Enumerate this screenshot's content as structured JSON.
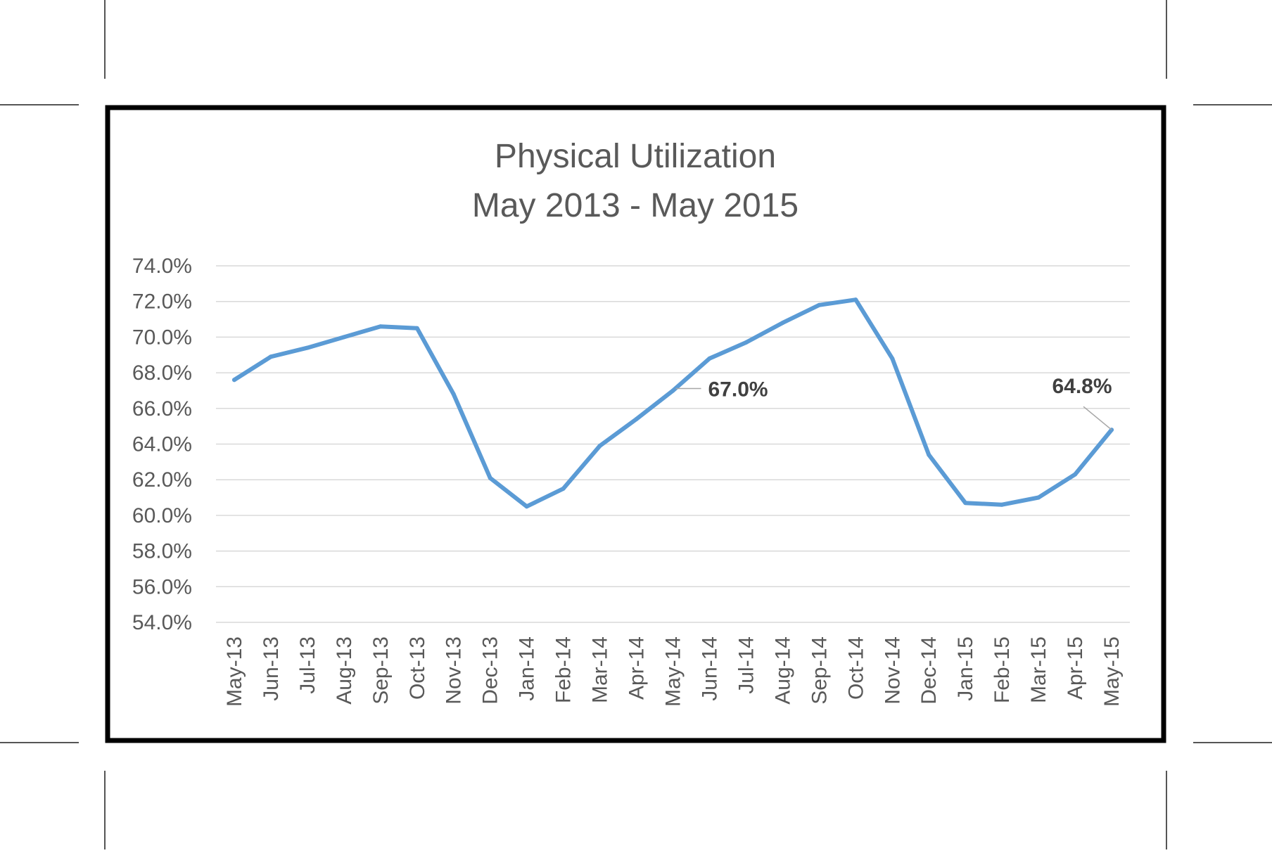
{
  "chart_data": {
    "type": "line",
    "title": [
      "Physical Utilization",
      "May 2013 - May 2015"
    ],
    "xlabel": "",
    "ylabel": "",
    "categories": [
      "May-13",
      "Jun-13",
      "Jul-13",
      "Aug-13",
      "Sep-13",
      "Oct-13",
      "Nov-13",
      "Dec-13",
      "Jan-14",
      "Feb-14",
      "Mar-14",
      "Apr-14",
      "May-14",
      "Jun-14",
      "Jul-14",
      "Aug-14",
      "Sep-14",
      "Oct-14",
      "Nov-14",
      "Dec-14",
      "Jan-15",
      "Feb-15",
      "Mar-15",
      "Apr-15",
      "May-15"
    ],
    "series": [
      {
        "values": [
          67.6,
          68.9,
          69.4,
          70.0,
          70.6,
          70.5,
          66.8,
          62.1,
          60.5,
          61.5,
          63.9,
          65.4,
          67.0,
          68.8,
          69.7,
          70.8,
          71.8,
          72.1,
          68.8,
          63.4,
          60.7,
          60.6,
          61.0,
          62.3,
          64.8
        ],
        "color": "#5B9BD5"
      }
    ],
    "ylim": [
      54.0,
      74.0
    ],
    "yticks": [
      "74.0%",
      "72.0%",
      "70.0%",
      "68.0%",
      "66.0%",
      "64.0%",
      "62.0%",
      "60.0%",
      "58.0%",
      "56.0%",
      "54.0%"
    ],
    "grid": true,
    "legend": "none",
    "annotations": [
      {
        "category": "May-14",
        "text": "67.0%"
      },
      {
        "category": "May-15",
        "text": "64.8%"
      }
    ]
  }
}
